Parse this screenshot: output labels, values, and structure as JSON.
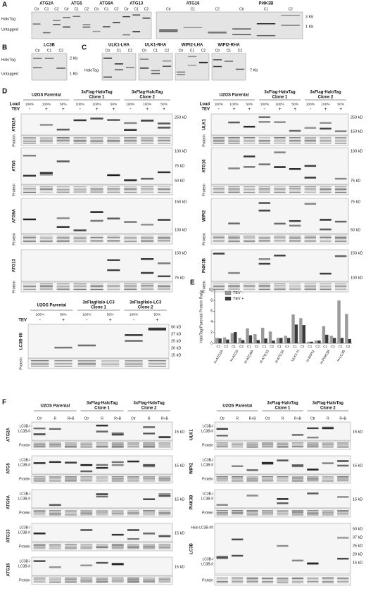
{
  "panel_a": {
    "label": "A",
    "genes_left": [
      "ATG2A",
      "ATG5",
      "ATG9A",
      "ATG13"
    ],
    "genes_right": [
      "ATG16",
      "PI4K3B"
    ],
    "lanes": [
      "Ctr",
      "C1",
      "C2"
    ],
    "row_labels": [
      "HaloTag",
      "Untagged"
    ],
    "sizes": [
      "3 Kb",
      "1 Kb"
    ]
  },
  "panel_b": {
    "label": "B",
    "gene": "LC3B",
    "lanes": [
      "Ctr",
      "C1",
      "C2"
    ],
    "row_labels": [
      "HaloTag",
      "Untagged"
    ],
    "sizes": [
      "2 Kb",
      "1 Kb"
    ]
  },
  "panel_c": {
    "label": "C",
    "constructs": [
      "ULK1-LHA",
      "ULK1-RHA",
      "WIPI2-LHA",
      "WIPI2-RHA"
    ],
    "lanes": [
      "Ctr",
      "C1",
      "C2"
    ],
    "row_label": "HaloTag",
    "size": "7 Kb"
  },
  "panel_d": {
    "label": "D",
    "groups": [
      [
        "U2OS Parental"
      ],
      [
        "3xFlag-HaloTag",
        "Clone 1"
      ],
      [
        "3xFlag-HaloTag",
        "Clone 2"
      ]
    ],
    "load_label": "Load",
    "loads": [
      "100%",
      "100%",
      "50%",
      "100%",
      "100%",
      "50%",
      "100%",
      "100%",
      "50%"
    ],
    "tev_label": "TEV",
    "tev": [
      "-",
      "+",
      "+",
      "-",
      "+",
      "+",
      "-",
      "+",
      "+"
    ],
    "protein_label": "Protein",
    "left_blots": [
      {
        "name": "ATG2A",
        "sizes": [
          "250 kD"
        ]
      },
      {
        "name": "ATG5",
        "sizes": [
          "100 kD",
          "75 kD",
          "50 kD"
        ]
      },
      {
        "name": "ATG9A",
        "sizes": [
          "150 kD",
          "100 kD"
        ]
      },
      {
        "name": "ATG13",
        "sizes": [
          "150 kD",
          "75 kD"
        ]
      }
    ],
    "right_blots": [
      {
        "name": "ULK1",
        "sizes": [
          "250 kD",
          "150 kD"
        ]
      },
      {
        "name": "ATG16",
        "sizes": [
          "100 kD",
          "75 kD"
        ]
      },
      {
        "name": "WIPI2",
        "sizes": [
          "75 kD",
          "50 kD"
        ]
      },
      {
        "name": "PI4K3B",
        "sizes": [
          "150 kD",
          "100 kD"
        ]
      }
    ],
    "lc3": {
      "groups": [
        [
          "U2OS Parental"
        ],
        [
          "3xFlagHalo-LC3",
          "Clone 1"
        ],
        [
          "3xFlagHalo-LC3",
          "Clone 2"
        ]
      ],
      "loads": [
        "100%",
        "50%",
        "100%",
        "50%",
        "100%",
        "50%"
      ],
      "tev": [
        "-",
        "+",
        "-",
        "+",
        "-",
        "+"
      ],
      "name": "LC3B-I/II",
      "sizes": [
        "50 kD",
        "37 kD",
        "25 kD",
        "20 kD",
        "15 kD"
      ]
    }
  },
  "panel_e": {
    "label": "E",
    "type": "bar",
    "y_label": "HaloTag/Parental Protein Ratio",
    "groups": [
      "H-ATG2A",
      "H-ATG5",
      "H-ATG9A",
      "H-ATG13",
      "H-ATG16",
      "ULK1-H",
      "H-WIPI2",
      "H-PI4K3B",
      "H-LC3B"
    ],
    "categories": [
      "C1",
      "C2",
      "C1",
      "C2",
      "C1",
      "C2",
      "C1",
      "C2",
      "C1",
      "C2",
      "C1",
      "C2",
      "C1",
      "C2",
      "C1",
      "C2",
      "C1",
      "C2"
    ],
    "series": [
      {
        "name": "TEV -",
        "color": "#9a9a9a",
        "values": [
          1.0,
          1.1,
          1.9,
          1.0,
          2.8,
          1.7,
          2.9,
          2.2,
          1.0,
          1.4,
          5.4,
          4.7,
          0.3,
          0.5,
          3.2,
          1.4,
          8.0,
          5.5
        ]
      },
      {
        "name": "TEV +",
        "color": "#3a3a3a",
        "values": [
          0.9,
          0.7,
          2.1,
          0.6,
          1.5,
          0.6,
          0.9,
          0.5,
          1.0,
          1.0,
          3.5,
          3.4,
          0.3,
          0.5,
          1.6,
          1.0,
          1.0,
          0.8
        ]
      }
    ],
    "ylim": [
      0,
      10
    ],
    "yticks": [
      0,
      2,
      4,
      6,
      8,
      10
    ]
  },
  "panel_f": {
    "label": "F",
    "groups": [
      [
        "U2OS Parental"
      ],
      [
        "3xFlag-HaloTag",
        "Clone 1"
      ],
      [
        "3xFlag-HaloTag",
        "Clone 2"
      ]
    ],
    "lanes": [
      "Ctr",
      "R",
      "R+B"
    ],
    "bands": [
      "LC3B-I",
      "LC3B-II"
    ],
    "protein_label": "Protein",
    "size": "15 kD",
    "left_blots": [
      "ATG2A",
      "ATG5",
      "ATG9A",
      "ATG13",
      "ATG16"
    ],
    "right_blots": [
      "ULK1",
      "WIPI2",
      "PI4K3B"
    ],
    "lc3": {
      "name": "LC3B",
      "halo_band": "Halo-LC3B-I/II",
      "sizes": [
        "50 kD",
        "37 kD",
        "25 kD",
        "20 kD",
        "15 kD"
      ]
    }
  }
}
